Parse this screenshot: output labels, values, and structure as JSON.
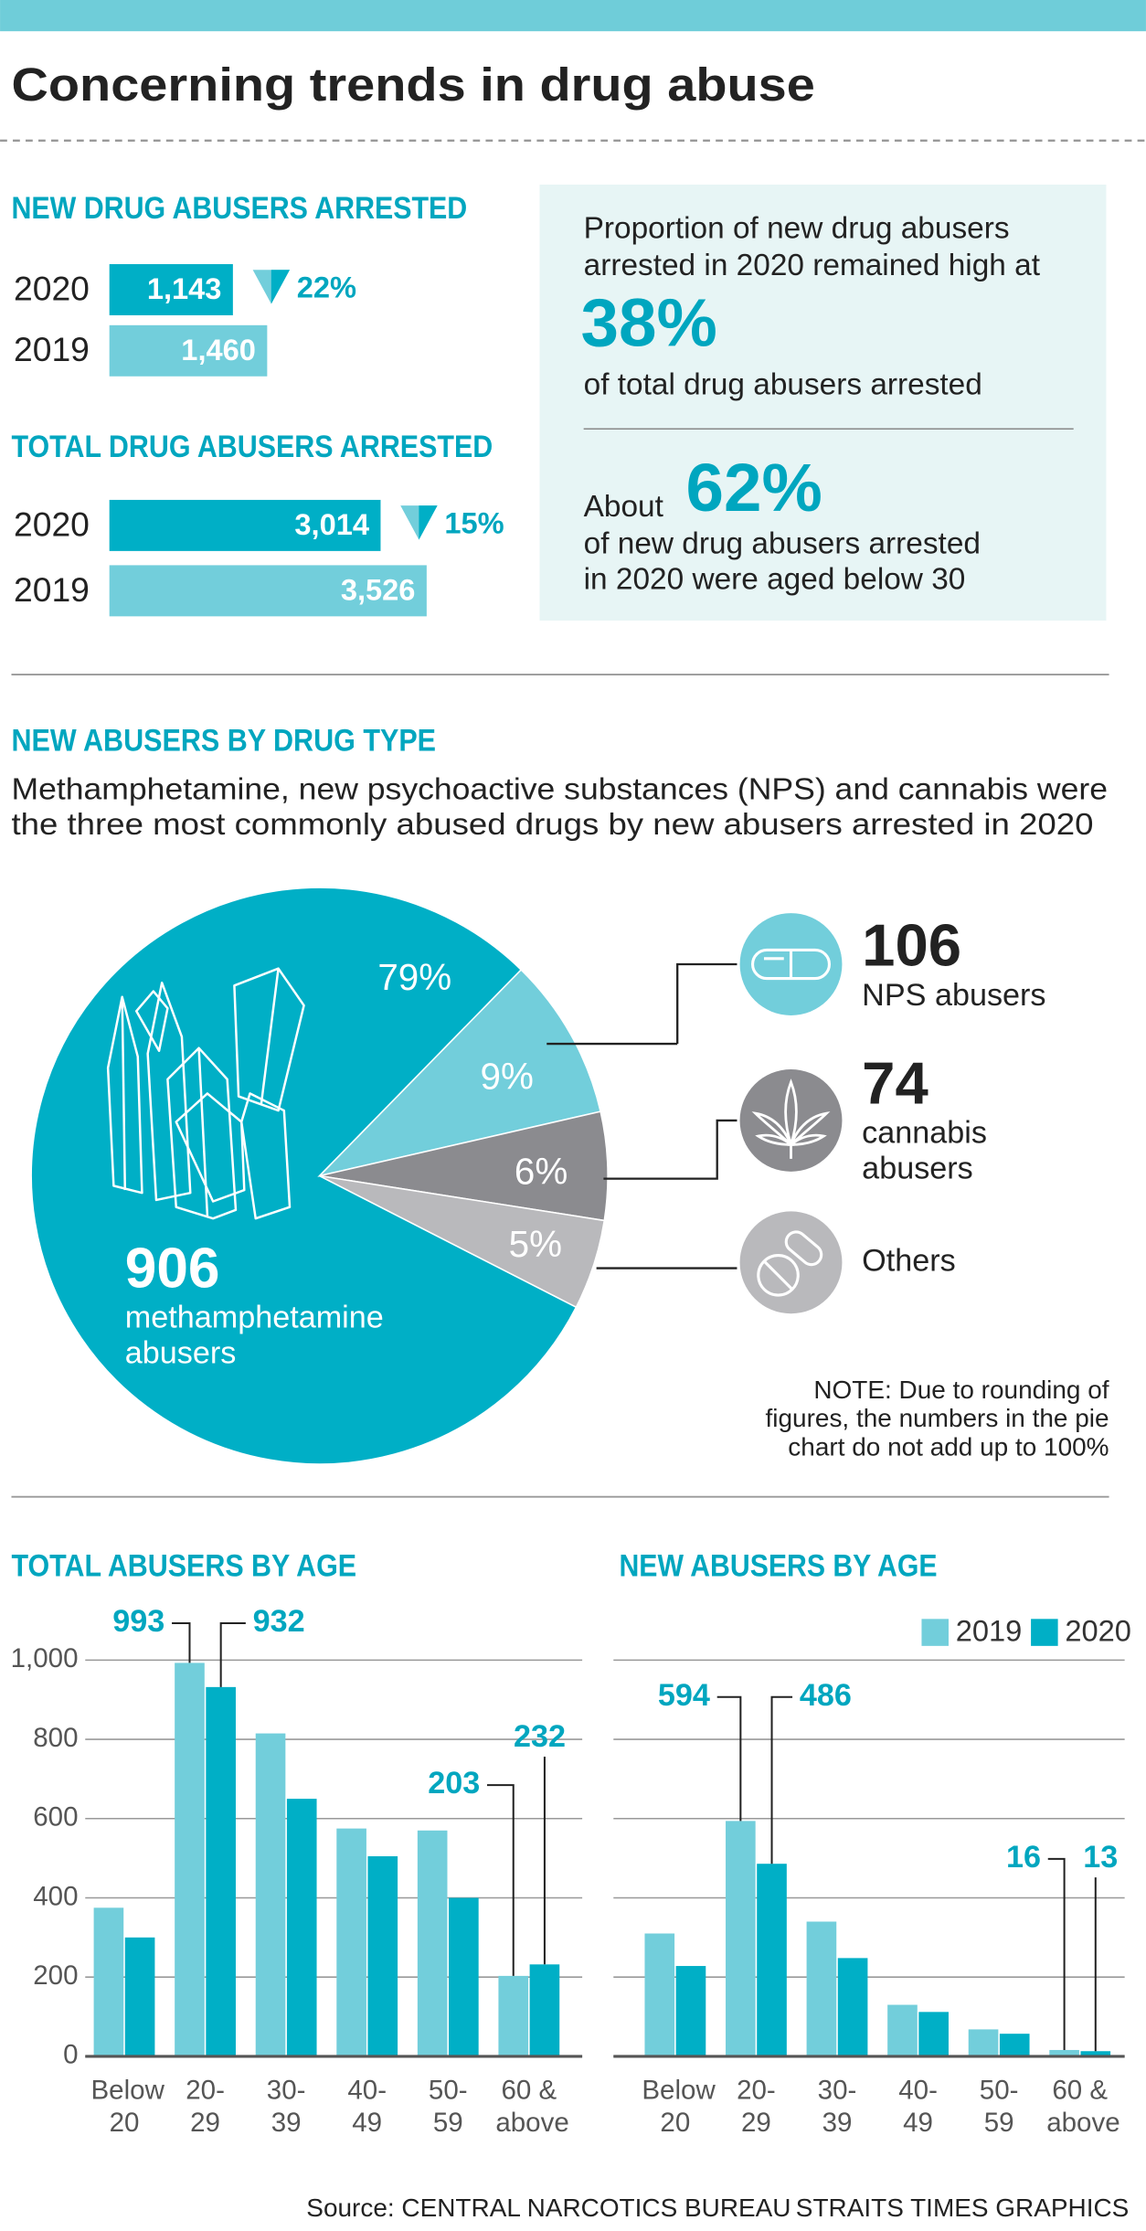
{
  "title": "Concerning trends in drug abuse",
  "panel": {
    "lines_1": [
      "Proportion of new drug abusers",
      "arrested in 2020 remained high at"
    ],
    "figure_1": "38%",
    "caption_1": "of total drug abusers arrested",
    "prefix_2": "About",
    "figure_2": "62%",
    "caption_2": [
      "of new drug abusers arrested",
      "in 2020 were aged below 30"
    ]
  },
  "chart_data": [
    {
      "type": "bar",
      "orientation": "horizontal",
      "title": "NEW DRUG ABUSERS ARRESTED",
      "categories": [
        "2020",
        "2019"
      ],
      "values": [
        1143,
        1460
      ],
      "value_labels": [
        "1,143",
        "1,460"
      ],
      "colors": [
        "#00afc6",
        "#72cedb"
      ],
      "change_label": "22%"
    },
    {
      "type": "bar",
      "orientation": "horizontal",
      "title": "TOTAL DRUG ABUSERS ARRESTED",
      "categories": [
        "2020",
        "2019"
      ],
      "values": [
        3014,
        3526
      ],
      "value_labels": [
        "3,014",
        "3,526"
      ],
      "colors": [
        "#00afc6",
        "#72cedb"
      ],
      "change_label": "15%"
    },
    {
      "type": "pie",
      "title": "NEW ABUSERS BY DRUG TYPE",
      "subtitle": [
        "Methamphetamine, new psychoactive substances (NPS) and cannabis were",
        "the three most commonly abused drugs by new abusers arrested in 2020"
      ],
      "values": [
        79,
        9,
        6,
        5
      ],
      "value_labels": [
        "79%",
        "9%",
        "6%",
        "5%"
      ],
      "colors": [
        "#00afc6",
        "#72cedb",
        "#8b8b8f",
        "#b9b9bc"
      ],
      "callouts": [
        {
          "value": 906,
          "lines": [
            "methamphetamine",
            "abusers"
          ]
        },
        {
          "value": 106,
          "lines": [
            "NPS abusers"
          ]
        },
        {
          "value": 74,
          "lines": [
            "cannabis",
            "abusers"
          ]
        },
        {
          "lines": [
            "Others"
          ]
        }
      ],
      "note": [
        "NOTE: Due to rounding of",
        "figures, the numbers in the pie",
        "chart do not add up to 100%"
      ]
    },
    {
      "type": "bar",
      "title": "TOTAL ABUSERS BY AGE",
      "categories": [
        "Below 20",
        "20-29",
        "30-39",
        "40-49",
        "50-59",
        "60 & above"
      ],
      "series": [
        {
          "color": "#72cedb",
          "values": [
            375,
            993,
            815,
            575,
            570,
            203
          ],
          "value_labels": [
            null,
            "993",
            null,
            null,
            null,
            "203"
          ]
        },
        {
          "color": "#00afc6",
          "values": [
            300,
            932,
            650,
            505,
            400,
            232
          ],
          "value_labels": [
            null,
            "932",
            null,
            null,
            null,
            "232"
          ]
        }
      ],
      "ylim": [
        0,
        1000
      ],
      "yticks": [
        0,
        200,
        400,
        600,
        800,
        {
          "value": 1000,
          "label": "1,000"
        }
      ],
      "grid": true
    },
    {
      "type": "bar",
      "title": "NEW ABUSERS BY AGE",
      "categories": [
        "Below 20",
        "20-29",
        "30-39",
        "40-49",
        "50-59",
        "60 & above"
      ],
      "series": [
        {
          "name": "2019",
          "color": "#72cedb",
          "values": [
            310,
            594,
            340,
            130,
            68,
            16
          ],
          "value_labels": [
            null,
            "594",
            null,
            null,
            null,
            "16"
          ]
        },
        {
          "name": "2020",
          "color": "#00afc6",
          "values": [
            228,
            486,
            248,
            112,
            57,
            13
          ],
          "value_labels": [
            null,
            "486",
            null,
            null,
            null,
            "13"
          ]
        }
      ],
      "ylim": [
        0,
        1000
      ],
      "grid": true,
      "legend": "top-right"
    }
  ],
  "source": "Source: CENTRAL NARCOTICS BUREAU",
  "credit": "STRAITS TIMES GRAPHICS"
}
